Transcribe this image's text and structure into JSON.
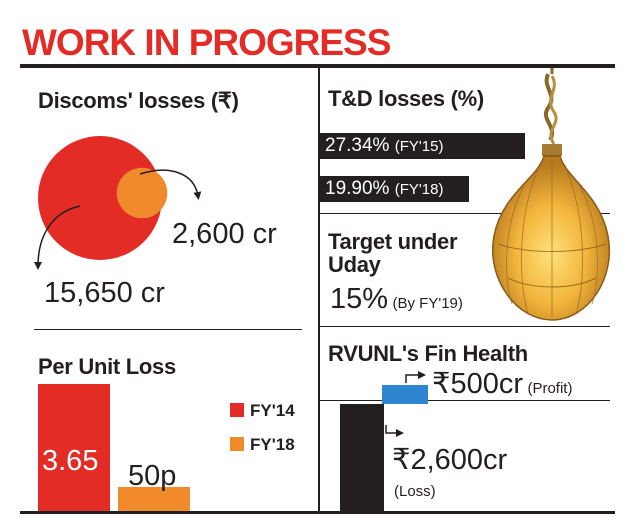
{
  "title": "WORK IN PROGRESS",
  "colors": {
    "red": "#e32c26",
    "orange": "#f08a2b",
    "blue": "#2e86d0",
    "black": "#231f20"
  },
  "chart_data": [
    {
      "type": "pie",
      "title": "Discoms' losses (₹)",
      "series": [
        {
          "label": "15,650 cr",
          "value": 15650
        },
        {
          "label": "2,600 cr",
          "value": 2600
        }
      ]
    },
    {
      "type": "bar",
      "title": "Per Unit Loss",
      "categories": [
        "FY'14",
        "FY'18"
      ],
      "values": [
        3.65,
        0.5
      ],
      "value_labels": [
        "3.65",
        "50p"
      ],
      "legend": [
        {
          "label": "FY'14",
          "color": "#e32c26"
        },
        {
          "label": "FY'18",
          "color": "#f08a2b"
        }
      ]
    },
    {
      "type": "bar",
      "title": "T&D losses (%)",
      "categories": [
        "FY'15",
        "FY'18"
      ],
      "values": [
        27.34,
        19.9
      ],
      "bar_labels": [
        {
          "value": "27.34%",
          "period": "(FY'15)"
        },
        {
          "value": "19.90%",
          "period": "(FY'18)"
        }
      ],
      "target": {
        "heading": "Target under Uday",
        "value": "15%",
        "period": "(By FY'19)"
      }
    },
    {
      "type": "bar",
      "title": "RVUNL's Fin Health",
      "categories": [
        "Profit",
        "Loss"
      ],
      "values": [
        500,
        -2600
      ],
      "labels": [
        {
          "value": "₹500cr",
          "note": "(Profit)"
        },
        {
          "value": "₹2,600cr",
          "note": "(Loss)"
        }
      ]
    }
  ]
}
